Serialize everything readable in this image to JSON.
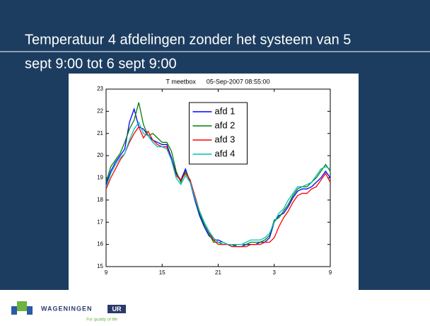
{
  "slide": {
    "title_lines": [
      "Temperatuur 4 afdelingen zonder het systeem van 5",
      "sept 9:00 tot 6 sept 9:00"
    ]
  },
  "logo": {
    "name": "WAGENINGEN",
    "suffix": "UR",
    "tagline": "For quality of life"
  },
  "chart_data": {
    "type": "line",
    "title": "T meetbox      05-Sep-2007 08:55:00",
    "x": [
      9,
      9.5,
      10,
      10.5,
      11,
      11.5,
      12,
      12.5,
      13,
      13.5,
      14,
      14.5,
      15,
      15.5,
      16,
      16.5,
      17,
      17.5,
      18,
      18.5,
      19,
      19.5,
      20,
      20.5,
      21,
      21.5,
      22,
      22.5,
      23,
      23.5,
      24,
      24.5,
      25,
      25.5,
      26,
      26.5,
      27,
      27.5,
      28,
      28.5,
      29,
      29.5,
      30,
      30.5,
      31,
      31.5,
      32,
      32.5,
      33
    ],
    "series": [
      {
        "name": "afd 1",
        "color": "#0000ff",
        "values": [
          18.7,
          19.3,
          19.7,
          20.0,
          20.3,
          21.5,
          22.1,
          21.3,
          21.2,
          20.9,
          20.7,
          20.6,
          20.5,
          20.5,
          19.9,
          19.2,
          18.9,
          19.4,
          18.8,
          18.0,
          17.3,
          16.8,
          16.4,
          16.2,
          16.2,
          16.1,
          16.0,
          16.0,
          15.9,
          15.9,
          16.0,
          16.0,
          16.0,
          16.1,
          16.1,
          16.3,
          17.0,
          17.3,
          17.4,
          17.7,
          18.1,
          18.4,
          18.5,
          18.5,
          18.6,
          18.8,
          19.0,
          19.3,
          19.0
        ]
      },
      {
        "name": "afd 2",
        "color": "#008000",
        "values": [
          18.8,
          19.5,
          19.8,
          20.1,
          20.6,
          21.2,
          21.6,
          22.4,
          21.4,
          20.9,
          21.0,
          20.8,
          20.6,
          20.6,
          20.2,
          19.3,
          18.8,
          19.3,
          18.9,
          18.1,
          17.4,
          16.9,
          16.5,
          16.1,
          16.1,
          16.0,
          16.0,
          15.9,
          16.0,
          16.0,
          16.0,
          16.1,
          16.1,
          16.1,
          16.2,
          16.4,
          17.1,
          17.2,
          17.5,
          17.8,
          18.2,
          18.5,
          18.6,
          18.6,
          18.8,
          19.0,
          19.3,
          19.6,
          19.3
        ]
      },
      {
        "name": "afd 3",
        "color": "#ff0000",
        "values": [
          18.5,
          19.0,
          19.4,
          19.8,
          20.1,
          20.6,
          21.0,
          21.3,
          20.8,
          21.1,
          20.7,
          20.5,
          20.4,
          20.4,
          19.8,
          19.1,
          18.9,
          19.2,
          18.9,
          18.2,
          17.5,
          17.0,
          16.6,
          16.2,
          16.0,
          16.0,
          16.0,
          15.9,
          15.9,
          15.9,
          15.9,
          16.0,
          16.0,
          16.0,
          16.1,
          16.1,
          16.3,
          16.8,
          17.2,
          17.5,
          17.9,
          18.2,
          18.3,
          18.3,
          18.5,
          18.6,
          18.9,
          19.2,
          18.8
        ]
      },
      {
        "name": "afd 4",
        "color": "#00bfbf",
        "values": [
          18.6,
          19.2,
          19.6,
          19.9,
          20.1,
          20.7,
          21.2,
          21.5,
          21.0,
          20.9,
          20.6,
          20.4,
          20.4,
          20.3,
          19.8,
          19.0,
          18.7,
          19.1,
          18.8,
          18.1,
          17.5,
          17.0,
          16.6,
          16.3,
          16.1,
          16.1,
          16.0,
          16.0,
          16.0,
          16.0,
          16.1,
          16.2,
          16.2,
          16.2,
          16.3,
          16.5,
          17.0,
          17.4,
          17.6,
          18.0,
          18.3,
          18.6,
          18.6,
          18.7,
          18.8,
          19.1,
          19.4,
          19.5,
          19.4
        ]
      }
    ],
    "xlim": [
      9,
      33
    ],
    "xticks": [
      9,
      15,
      21,
      {
        "value": 27,
        "label": "3"
      },
      {
        "value": 33,
        "label": "9"
      }
    ],
    "ylim": [
      15,
      23
    ],
    "yticks": [
      15,
      16,
      17,
      18,
      19,
      20,
      21,
      22,
      23
    ],
    "legend": "upper center"
  }
}
